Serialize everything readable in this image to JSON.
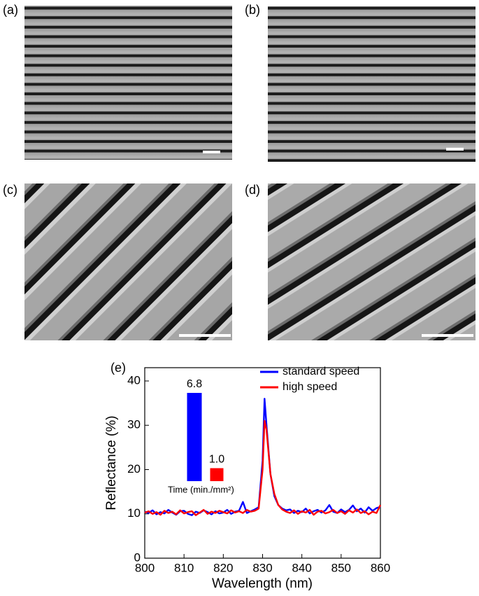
{
  "panels": [
    "(a)",
    "(b)",
    "(c)",
    "(d)"
  ],
  "chart_data": [
    {
      "type": "line",
      "title": "(e)",
      "xlabel": "Wavelength (nm)",
      "ylabel": "Reflectance (%)",
      "x": [
        800,
        801,
        802,
        803,
        804,
        805,
        806,
        807,
        808,
        809,
        810,
        811,
        812,
        813,
        814,
        815,
        816,
        817,
        818,
        819,
        820,
        821,
        822,
        823,
        824,
        825,
        826,
        827,
        828,
        829,
        830,
        830.5,
        831,
        832,
        833,
        834,
        835,
        836,
        837,
        838,
        839,
        840,
        841,
        842,
        843,
        844,
        845,
        846,
        847,
        848,
        849,
        850,
        851,
        852,
        853,
        854,
        855,
        856,
        857,
        858,
        859,
        860
      ],
      "series": [
        {
          "name": "standard speed",
          "color": "#0000ff",
          "values": [
            10.5,
            10.2,
            10.8,
            9.9,
            10.4,
            10.1,
            10.9,
            10.3,
            9.8,
            10.6,
            10.7,
            10.0,
            9.7,
            10.5,
            10.2,
            10.8,
            10.4,
            9.9,
            10.6,
            10.1,
            10.3,
            10.9,
            10.0,
            10.5,
            10.7,
            12.7,
            10.2,
            10.6,
            11.0,
            11.5,
            22,
            36,
            30,
            19,
            14,
            12,
            11.2,
            10.8,
            11.0,
            10.2,
            10.7,
            10.4,
            11.2,
            10.1,
            10.6,
            10.9,
            10.3,
            10.8,
            12.0,
            10.5,
            10.2,
            11.0,
            10.4,
            10.9,
            11.9,
            10.6,
            11.2,
            10.3,
            11.5,
            10.7,
            11.3,
            11.6
          ]
        },
        {
          "name": "high speed",
          "color": "#ff0000",
          "values": [
            10.3,
            10.6,
            10.0,
            10.4,
            9.8,
            10.7,
            10.2,
            10.5,
            9.9,
            10.8,
            10.1,
            10.4,
            10.6,
            9.7,
            10.3,
            10.9,
            10.0,
            10.5,
            10.2,
            10.7,
            10.4,
            10.1,
            10.8,
            10.3,
            10.6,
            10.2,
            10.9,
            10.5,
            10.7,
            11.2,
            20,
            31,
            29,
            19,
            14.5,
            12,
            11.0,
            10.5,
            10.2,
            10.8,
            10.0,
            10.6,
            10.3,
            10.9,
            9.8,
            10.5,
            10.7,
            10.1,
            10.4,
            10.9,
            10.2,
            10.6,
            10.0,
            10.8,
            10.3,
            11.0,
            10.2,
            10.6,
            9.9,
            10.5,
            10.2,
            12.0
          ]
        }
      ],
      "xlim": [
        800,
        860
      ],
      "xticks": [
        800,
        810,
        820,
        830,
        840,
        850,
        860
      ],
      "ylim": [
        0,
        43
      ],
      "yticks": [
        0,
        10,
        20,
        30,
        40
      ],
      "legend": "top-right"
    },
    {
      "type": "bar",
      "xlabel": "Time (min./mm²)",
      "categories": [
        null,
        null
      ],
      "values": [
        6.8,
        1.0
      ],
      "value_labels": [
        "6.8",
        "1.0"
      ],
      "colors": [
        "#0000ff",
        "#ff0000"
      ],
      "ylim": [
        0,
        7
      ]
    }
  ]
}
